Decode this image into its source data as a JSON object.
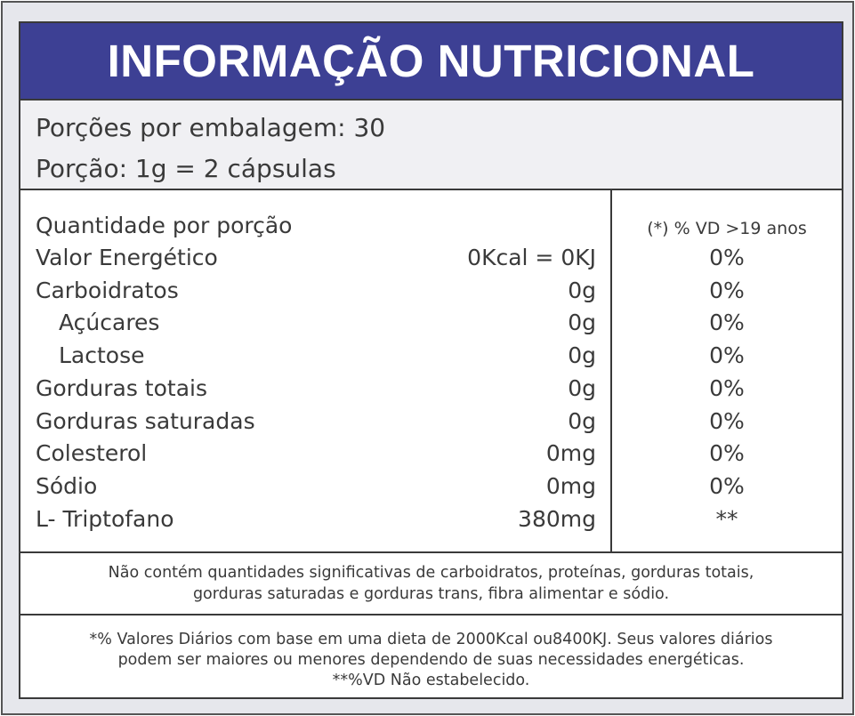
{
  "colors": {
    "header_bg": "#3d4094",
    "serving_bg": "#f0f0f3",
    "page_bg": "#e6e7ec",
    "text": "#3a3a3a"
  },
  "title": "INFORMAÇÃO NUTRICIONAL",
  "servings_per_package": "Porções por embalagem: 30",
  "serving_size": "Porção: 1g = 2 cápsulas",
  "table": {
    "header_label": "Quantidade por porção",
    "header_vd": "(*) % VD  >19 anos",
    "rows": [
      {
        "name": "Valor Energético",
        "amount": "0Kcal = 0KJ",
        "vd": "0%"
      },
      {
        "name": "Carboidratos",
        "amount": "0g",
        "vd": "0%"
      },
      {
        "name": "Açúcares",
        "amount": "0g",
        "vd": "0%"
      },
      {
        "name": "Lactose",
        "amount": "0g",
        "vd": "0%"
      },
      {
        "name": "Gorduras totais",
        "amount": "0g",
        "vd": "0%"
      },
      {
        "name": "Gorduras saturadas",
        "amount": "0g",
        "vd": "0%"
      },
      {
        "name": "Colesterol",
        "amount": "0mg",
        "vd": "0%"
      },
      {
        "name": "Sódio",
        "amount": "0mg",
        "vd": "0%"
      },
      {
        "name": "L- Triptofano",
        "amount": "380mg",
        "vd": "**"
      }
    ]
  },
  "note1": [
    "Não contém quantidades significativas de carboidratos, proteínas, gorduras totais,",
    "gorduras saturadas e gorduras trans, fibra alimentar e sódio."
  ],
  "note2": [
    "*% Valores Diários com base em uma dieta de 2000Kcal ou8400KJ. Seus valores diários",
    "podem ser maiores ou menores dependendo de suas necessidades energéticas.",
    "**%VD Não estabelecido."
  ]
}
